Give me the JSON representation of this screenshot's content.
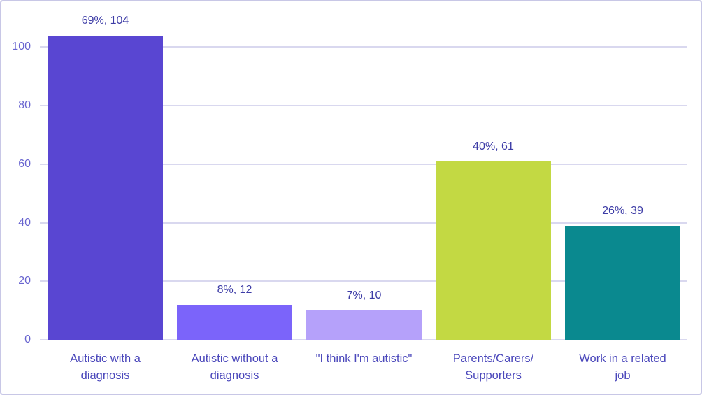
{
  "frame": {
    "background_color": "#ffffff",
    "border_color": "#c8c7e6"
  },
  "chart_data": {
    "type": "bar",
    "title": "",
    "xlabel": "",
    "ylabel": "",
    "categories": [
      "Autistic with a diagnosis",
      "Autistic without a diagnosis",
      "\"I think I'm autistic\"",
      "Parents/Carers/Supporters",
      "Work in a related job"
    ],
    "category_lines": [
      [
        "Autistic with a",
        "diagnosis"
      ],
      [
        "Autistic without a",
        "diagnosis"
      ],
      [
        "\"I think I'm autistic\""
      ],
      [
        "Parents/Carers/",
        "Supporters"
      ],
      [
        "Work in a related",
        "job"
      ]
    ],
    "values": [
      104,
      12,
      10,
      61,
      39
    ],
    "percentages": [
      "69%",
      "8%",
      "7%",
      "40%",
      "26%"
    ],
    "data_labels": [
      "69%, 104",
      "8%, 12",
      "7%, 10",
      "40%, 61",
      "26%, 39"
    ],
    "bar_colors": [
      "#5946d2",
      "#7b64fa",
      "#b5a1fa",
      "#c3d943",
      "#0a898f"
    ],
    "y_ticks": [
      0,
      20,
      40,
      60,
      80,
      100
    ],
    "ylim": [
      0,
      110
    ],
    "grid": true,
    "gridline_color": "#d9d8ef",
    "axis_tick_label_color": "#6965d0",
    "data_label_color": "#3d3ca6",
    "category_label_color": "#4b48bb",
    "legend_position": "none"
  }
}
